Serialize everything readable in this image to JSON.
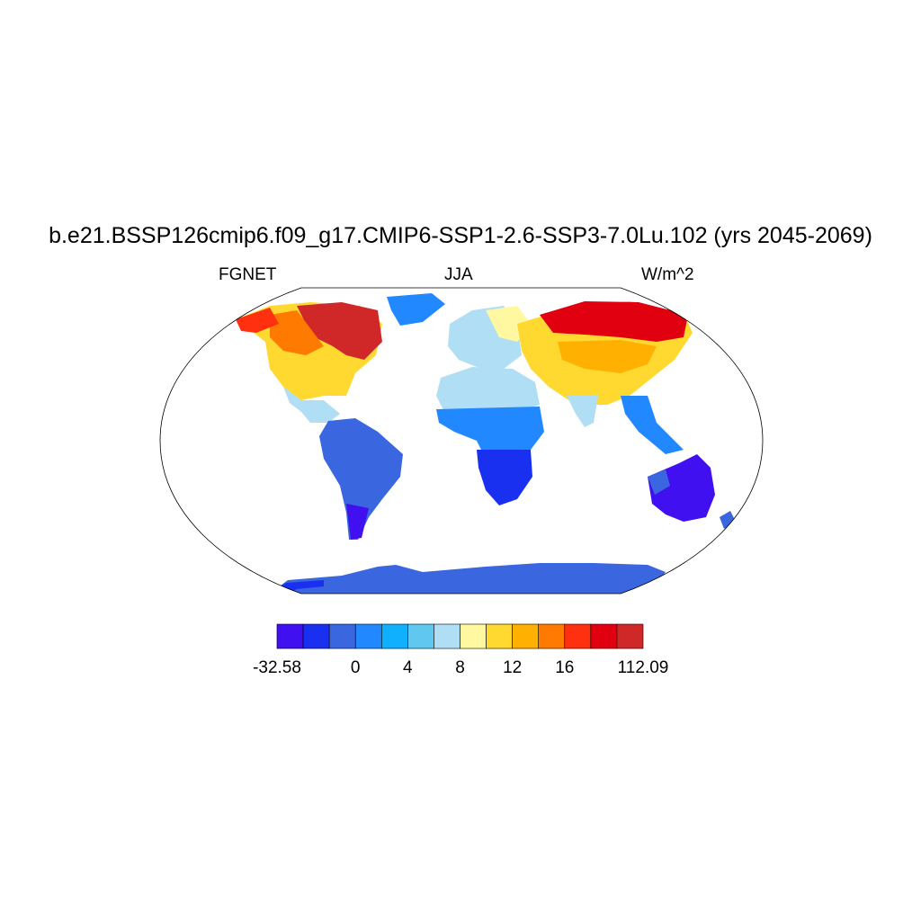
{
  "title": "b.e21.BSSP126cmip6.f09_g17.CMIP6-SSP1-2.6-SSP3-7.0Lu.102 (yrs 2045-2069)",
  "left_string": "FGNET",
  "center_string": "JJA",
  "right_string": "W/m^2",
  "colorbar": {
    "colors": [
      "#4010f0",
      "#1a30f0",
      "#3a66e0",
      "#2288ff",
      "#10b0ff",
      "#60c8f0",
      "#b0def4",
      "#fff8a0",
      "#ffd830",
      "#ffb000",
      "#ff7a00",
      "#ff3010",
      "#e00010",
      "#d02828"
    ],
    "labels": [
      {
        "text": "-32.58",
        "index": 0
      },
      {
        "text": "0",
        "index": 3
      },
      {
        "text": "4",
        "index": 5
      },
      {
        "text": "8",
        "index": 7
      },
      {
        "text": "12",
        "index": 9
      },
      {
        "text": "16",
        "index": 11
      },
      {
        "text": "112.09",
        "index": 14
      }
    ]
  }
}
